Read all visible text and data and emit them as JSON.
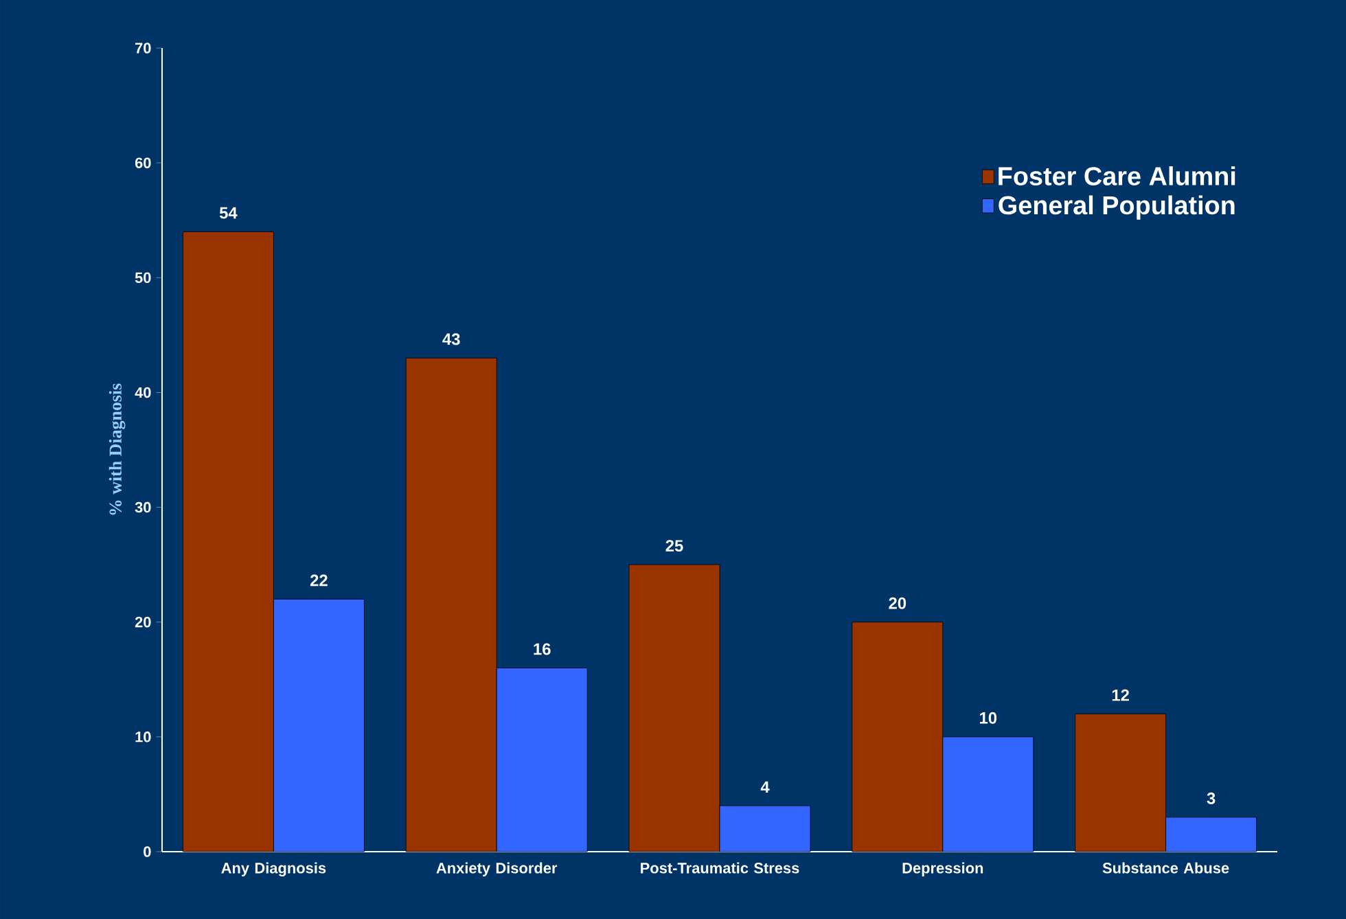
{
  "chart_data": {
    "type": "bar",
    "ylabel": "% with Diagnosis",
    "categories": [
      "Any Diagnosis",
      "Anxiety Disorder",
      "Post-Traumatic Stress",
      "Depression",
      "Substance Abuse"
    ],
    "series": [
      {
        "name": "Foster Care Alumni",
        "color": "#993300",
        "values": [
          54,
          43,
          25,
          20,
          12
        ]
      },
      {
        "name": "General Population",
        "color": "#3366ff",
        "values": [
          22,
          16,
          4,
          10,
          3
        ]
      }
    ],
    "ylim": [
      0,
      70
    ],
    "yticks": [
      0,
      10,
      20,
      30,
      40,
      50,
      60,
      70
    ],
    "data_labels": true,
    "legend": "top right",
    "grid": false
  }
}
